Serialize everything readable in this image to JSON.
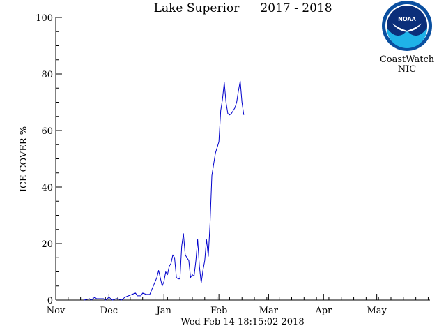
{
  "header": {
    "title_left": "Lake Superior",
    "title_right": "2017 - 2018"
  },
  "branding": {
    "logo_text": "NOAA",
    "line1": "CoastWatch",
    "line2": "NIC",
    "logo_colors": {
      "ring": "#0a4fa0",
      "sky": "#0b2f7a",
      "wave": "#1fb3e8",
      "gull": "#ffffff"
    }
  },
  "timestamp": "Wed Feb 14 18:15:02 2018",
  "colors": {
    "series": "#0000cc",
    "axis": "#000000",
    "background": "#ffffff"
  },
  "chart_data": {
    "type": "line",
    "title": "Lake Superior   2017 - 2018",
    "ylabel": "ICE COVER %",
    "xlabel": "",
    "ylim": [
      0,
      100
    ],
    "yticks": [
      "0",
      "20",
      "40",
      "60",
      "80",
      "100"
    ],
    "xlim": [
      "2017-11-01",
      "2018-05-31"
    ],
    "xticks": [
      {
        "label": "Nov",
        "date": "2017-11-01"
      },
      {
        "label": "Dec",
        "date": "2017-12-01"
      },
      {
        "label": "Jan",
        "date": "2018-01-01"
      },
      {
        "label": "Feb",
        "date": "2018-02-01"
      },
      {
        "label": "Mar",
        "date": "2018-03-01"
      },
      {
        "label": "Apr",
        "date": "2018-04-01"
      },
      {
        "label": "May",
        "date": "2018-05-01"
      }
    ],
    "grid": false,
    "series": [
      {
        "x": [
          "2017-11-17",
          "2017-11-20",
          "2017-11-21",
          "2017-11-23",
          "2017-11-24",
          "2017-11-28",
          "2017-11-29",
          "2017-12-01",
          "2017-12-03",
          "2017-12-05",
          "2017-12-06",
          "2017-12-08",
          "2017-12-10",
          "2017-12-12",
          "2017-12-14",
          "2017-12-16",
          "2017-12-17",
          "2017-12-19",
          "2017-12-20",
          "2017-12-22",
          "2017-12-24",
          "2017-12-26",
          "2017-12-28",
          "2017-12-29",
          "2017-12-31",
          "2018-01-01",
          "2018-01-02",
          "2018-01-03",
          "2018-01-04",
          "2018-01-05",
          "2018-01-06",
          "2018-01-07",
          "2018-01-08",
          "2018-01-09",
          "2018-01-10",
          "2018-01-11",
          "2018-01-12",
          "2018-01-13",
          "2018-01-14",
          "2018-01-15",
          "2018-01-16",
          "2018-01-17",
          "2018-01-18",
          "2018-01-19",
          "2018-01-20",
          "2018-01-21",
          "2018-01-22",
          "2018-01-23",
          "2018-01-24",
          "2018-01-25",
          "2018-01-26",
          "2018-01-27",
          "2018-01-28",
          "2018-01-29",
          "2018-01-30",
          "2018-01-31",
          "2018-02-01",
          "2018-02-02",
          "2018-02-03",
          "2018-02-04",
          "2018-02-05",
          "2018-02-06",
          "2018-02-07",
          "2018-02-08",
          "2018-02-09",
          "2018-02-10",
          "2018-02-11",
          "2018-02-12",
          "2018-02-13",
          "2018-02-14",
          "2018-02-15"
        ],
        "values": [
          0,
          0.5,
          0,
          1,
          0.5,
          0.5,
          0,
          1,
          0,
          0.5,
          0.5,
          0,
          1,
          1.5,
          2,
          2.5,
          1.5,
          1.5,
          2.5,
          2,
          2,
          5,
          8,
          10.5,
          5,
          6.5,
          10,
          9,
          12,
          13,
          16,
          15,
          8,
          7.5,
          7.5,
          19,
          23.5,
          16,
          15,
          14,
          8,
          9,
          8.5,
          14,
          21.5,
          12,
          6,
          10.5,
          14,
          21.5,
          15.5,
          27,
          44,
          48,
          52,
          54,
          56,
          67,
          71,
          77,
          70,
          66,
          65.5,
          66,
          67,
          68,
          70,
          74,
          77.5,
          70,
          65.5
        ]
      }
    ]
  }
}
